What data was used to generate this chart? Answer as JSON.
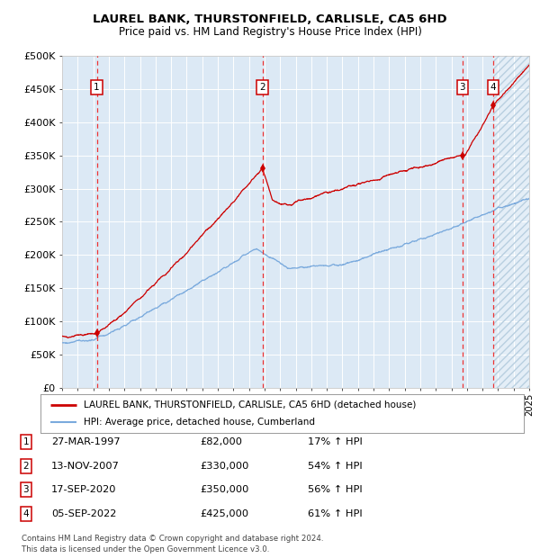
{
  "title": "LAUREL BANK, THURSTONFIELD, CARLISLE, CA5 6HD",
  "subtitle": "Price paid vs. HM Land Registry's House Price Index (HPI)",
  "bg_color": "#dce9f5",
  "hatch_color": "#b8cfe0",
  "red_line_color": "#cc0000",
  "blue_line_color": "#7aaadd",
  "grid_color": "#ffffff",
  "dashed_line_color": "#ee3333",
  "sale_marker_color": "#cc0000",
  "sale_events": [
    {
      "date_num": 1997.23,
      "price": 82000,
      "label": "1"
    },
    {
      "date_num": 2007.87,
      "price": 330000,
      "label": "2"
    },
    {
      "date_num": 2020.72,
      "price": 350000,
      "label": "3"
    },
    {
      "date_num": 2022.68,
      "price": 425000,
      "label": "4"
    }
  ],
  "ylim": [
    0,
    500000
  ],
  "xlim": [
    1995,
    2025
  ],
  "yticks": [
    0,
    50000,
    100000,
    150000,
    200000,
    250000,
    300000,
    350000,
    400000,
    450000,
    500000
  ],
  "ytick_labels": [
    "£0",
    "£50K",
    "£100K",
    "£150K",
    "£200K",
    "£250K",
    "£300K",
    "£350K",
    "£400K",
    "£450K",
    "£500K"
  ],
  "legend_line1": "LAUREL BANK, THURSTONFIELD, CARLISLE, CA5 6HD (detached house)",
  "legend_line2": "HPI: Average price, detached house, Cumberland",
  "table_rows": [
    {
      "num": "1",
      "date": "27-MAR-1997",
      "price": "£82,000",
      "pct": "17% ↑ HPI"
    },
    {
      "num": "2",
      "date": "13-NOV-2007",
      "price": "£330,000",
      "pct": "54% ↑ HPI"
    },
    {
      "num": "3",
      "date": "17-SEP-2020",
      "price": "£350,000",
      "pct": "56% ↑ HPI"
    },
    {
      "num": "4",
      "date": "05-SEP-2022",
      "price": "£425,000",
      "pct": "61% ↑ HPI"
    }
  ],
  "footer": "Contains HM Land Registry data © Crown copyright and database right 2024.\nThis data is licensed under the Open Government Licence v3.0.",
  "hatch_start": 2022.68
}
